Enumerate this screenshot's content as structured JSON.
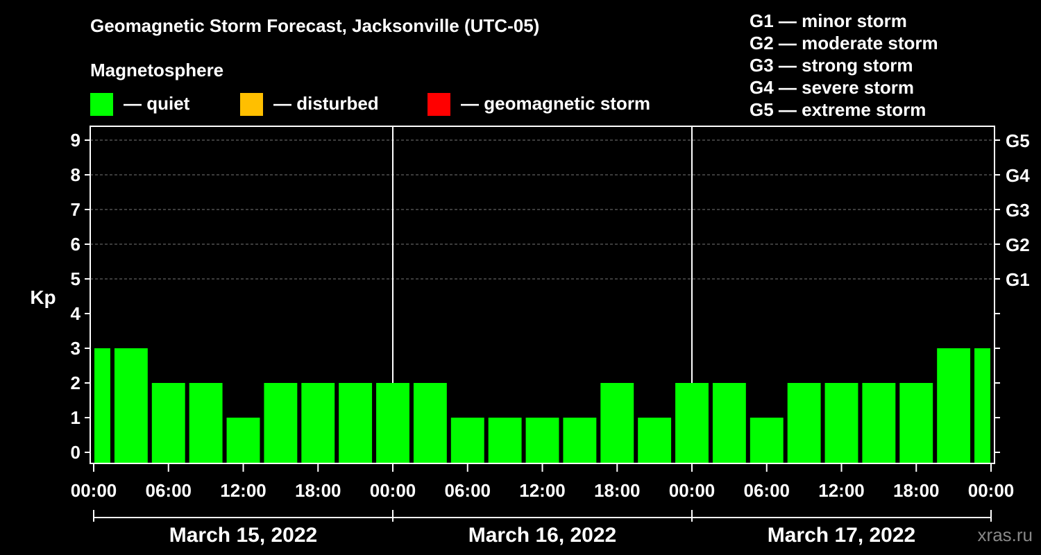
{
  "chart_data": {
    "type": "bar",
    "title": "Geomagnetic Storm Forecast, Jacksonville (UTC-05)",
    "subtitle": "Magnetosphere",
    "ylabel": "Kp",
    "ylim": [
      0,
      9
    ],
    "yticks": [
      "0",
      "1",
      "2",
      "3",
      "4",
      "5",
      "6",
      "7",
      "8",
      "9"
    ],
    "right_ticks": [
      {
        "kp": 5,
        "label": "G1"
      },
      {
        "kp": 6,
        "label": "G2"
      },
      {
        "kp": 7,
        "label": "G3"
      },
      {
        "kp": 8,
        "label": "G4"
      },
      {
        "kp": 9,
        "label": "G5"
      }
    ],
    "xticks": [
      "00:00",
      "06:00",
      "12:00",
      "18:00",
      "00:00",
      "06:00",
      "12:00",
      "18:00",
      "00:00",
      "06:00",
      "12:00",
      "18:00",
      "00:00"
    ],
    "days": [
      "March 15, 2022",
      "March 16, 2022",
      "March 17, 2022"
    ],
    "bar_hours": [
      0,
      3,
      6,
      9,
      12,
      15,
      18,
      21,
      24,
      27,
      30,
      33,
      36,
      39,
      42,
      45,
      48,
      51,
      54,
      57,
      60,
      63,
      66,
      69,
      72
    ],
    "values": [
      3,
      3,
      2,
      2,
      1,
      2,
      2,
      2,
      2,
      2,
      1,
      1,
      1,
      1,
      2,
      1,
      2,
      2,
      1,
      2,
      2,
      2,
      2,
      3,
      3
    ],
    "colors": {
      "quiet": "#00ff00",
      "disturbed": "#ffbf00",
      "storm": "#ff0000"
    },
    "legend": [
      {
        "color": "#00ff00",
        "label": "— quiet"
      },
      {
        "color": "#ffbf00",
        "label": "— disturbed"
      },
      {
        "color": "#ff0000",
        "label": "— geomagnetic storm"
      }
    ],
    "storm_scale": [
      "G1 — minor storm",
      "G2 — moderate storm",
      "G3 — strong storm",
      "G4 — severe storm",
      "G5 — extreme storm"
    ]
  },
  "credit": "xras.ru"
}
